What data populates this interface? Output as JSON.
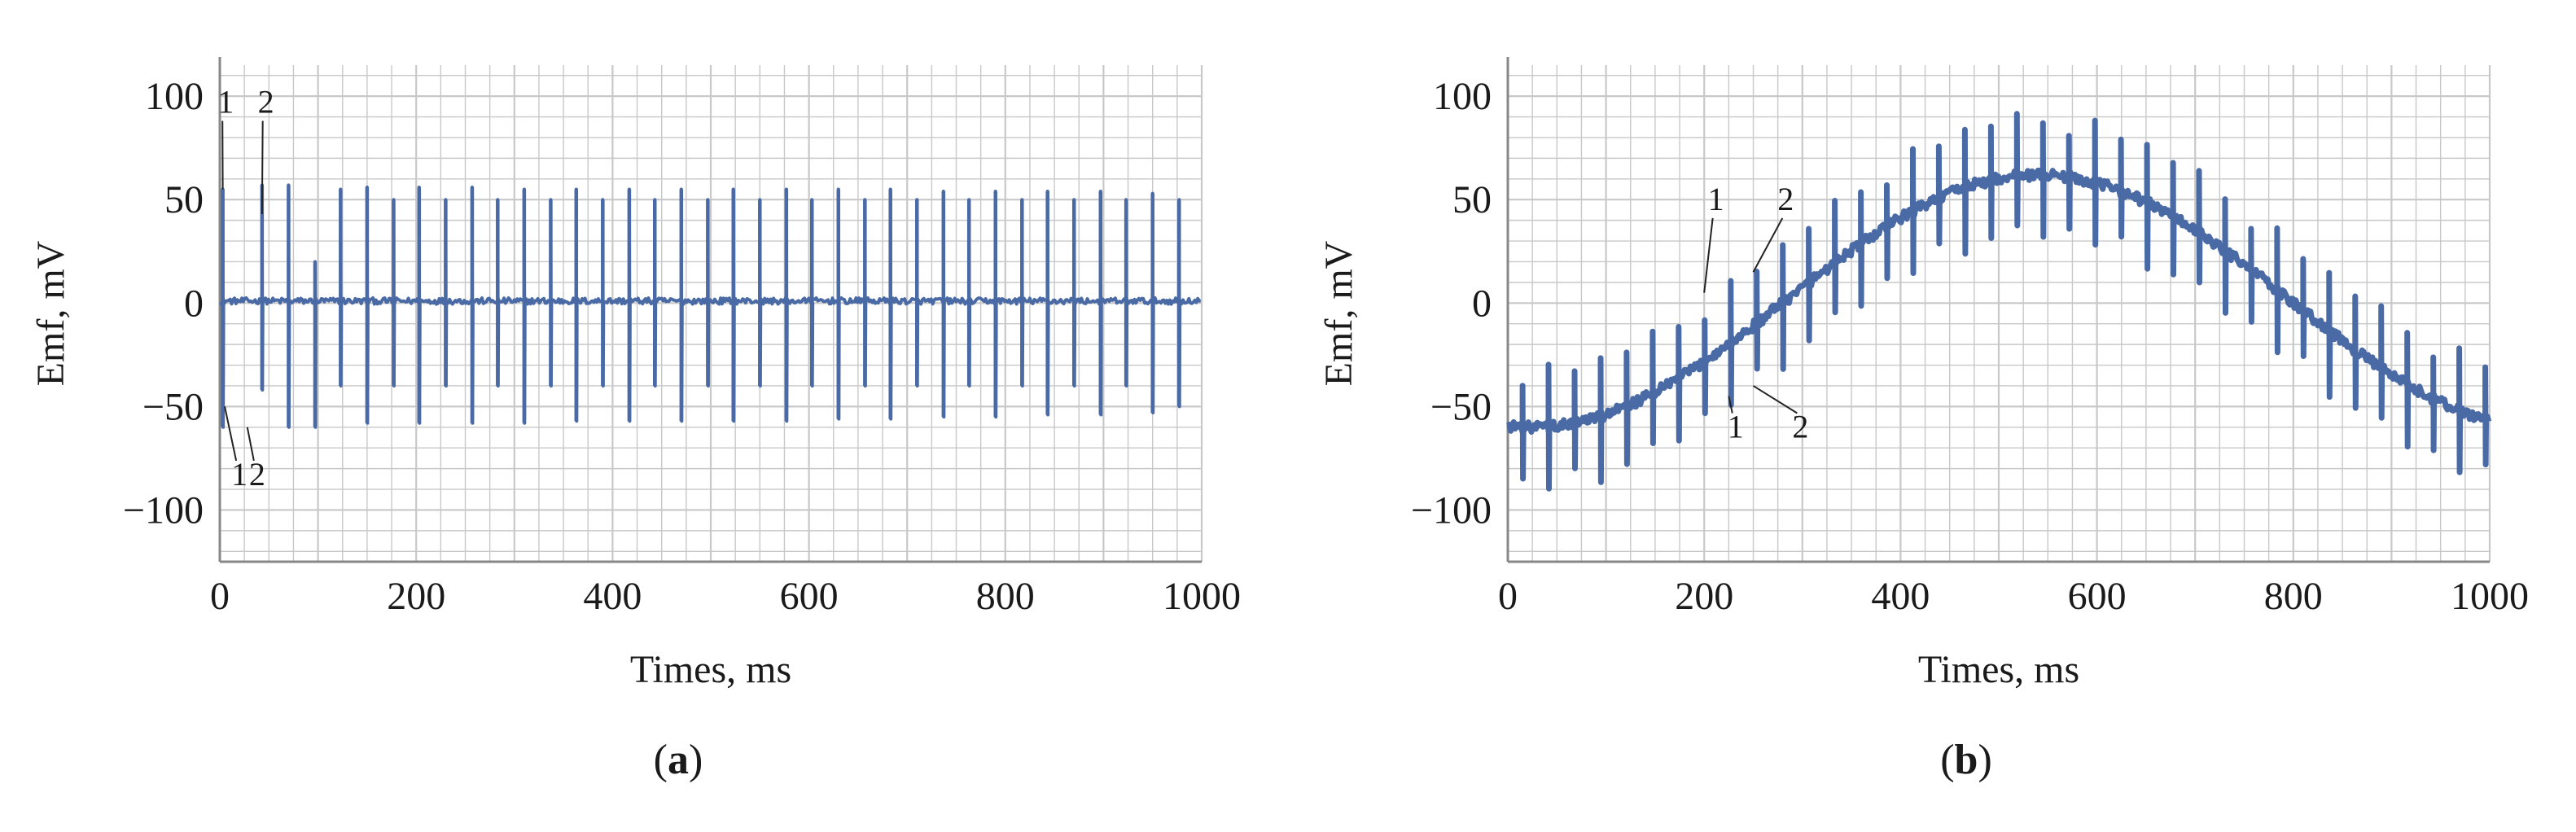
{
  "chart_data": [
    {
      "panel_label": "a",
      "caption_open": "(",
      "caption_close": ")",
      "type": "line",
      "xlabel": "Times, ms",
      "ylabel": "Emf, mV",
      "xlim": [
        0,
        1000
      ],
      "ylim": [
        -125,
        115
      ],
      "xticks": [
        0,
        200,
        400,
        600,
        800,
        1000
      ],
      "yticks": [
        100,
        50,
        0,
        -50,
        -100
      ],
      "ytick_labels": [
        "100",
        "50",
        "0",
        "−50",
        "−100"
      ],
      "grid": true,
      "baseline": {
        "kind": "flat",
        "level": 1,
        "noise": 1.5
      },
      "spikes": [
        {
          "x": 3,
          "top": 55,
          "bottom": -60
        },
        {
          "x": 43,
          "top": 57,
          "bottom": -42
        },
        {
          "x": 70,
          "top": 57,
          "bottom": -60
        },
        {
          "x": 97,
          "top": 20,
          "bottom": -60
        },
        {
          "x": 123,
          "top": 55,
          "bottom": -40
        },
        {
          "x": 150,
          "top": 56,
          "bottom": -58
        },
        {
          "x": 177,
          "top": 50,
          "bottom": -40
        },
        {
          "x": 203,
          "top": 56,
          "bottom": -58
        },
        {
          "x": 230,
          "top": 50,
          "bottom": -40
        },
        {
          "x": 257,
          "top": 56,
          "bottom": -58
        },
        {
          "x": 283,
          "top": 50,
          "bottom": -40
        },
        {
          "x": 310,
          "top": 55,
          "bottom": -58
        },
        {
          "x": 337,
          "top": 50,
          "bottom": -40
        },
        {
          "x": 363,
          "top": 55,
          "bottom": -57
        },
        {
          "x": 390,
          "top": 50,
          "bottom": -40
        },
        {
          "x": 417,
          "top": 55,
          "bottom": -57
        },
        {
          "x": 443,
          "top": 50,
          "bottom": -40
        },
        {
          "x": 470,
          "top": 55,
          "bottom": -57
        },
        {
          "x": 497,
          "top": 50,
          "bottom": -40
        },
        {
          "x": 523,
          "top": 55,
          "bottom": -57
        },
        {
          "x": 550,
          "top": 50,
          "bottom": -40
        },
        {
          "x": 577,
          "top": 55,
          "bottom": -57
        },
        {
          "x": 603,
          "top": 50,
          "bottom": -40
        },
        {
          "x": 630,
          "top": 55,
          "bottom": -56
        },
        {
          "x": 657,
          "top": 50,
          "bottom": -40
        },
        {
          "x": 683,
          "top": 55,
          "bottom": -56
        },
        {
          "x": 710,
          "top": 50,
          "bottom": -40
        },
        {
          "x": 737,
          "top": 54,
          "bottom": -55
        },
        {
          "x": 763,
          "top": 50,
          "bottom": -40
        },
        {
          "x": 790,
          "top": 54,
          "bottom": -55
        },
        {
          "x": 817,
          "top": 50,
          "bottom": -40
        },
        {
          "x": 843,
          "top": 54,
          "bottom": -54
        },
        {
          "x": 870,
          "top": 50,
          "bottom": -40
        },
        {
          "x": 897,
          "top": 54,
          "bottom": -54
        },
        {
          "x": 923,
          "top": 50,
          "bottom": -40
        },
        {
          "x": 950,
          "top": 53,
          "bottom": -53
        },
        {
          "x": 977,
          "top": 50,
          "bottom": -50
        }
      ],
      "annotations": [
        {
          "text": "1",
          "x": 6,
          "y": 92,
          "tx": 3,
          "ty": 55
        },
        {
          "text": "2",
          "x": 47,
          "y": 92,
          "tx": 43,
          "ty": 43
        },
        {
          "text": "1",
          "x": 20,
          "y": -88,
          "tx": 5,
          "ty": -50
        },
        {
          "text": "2",
          "x": 38,
          "y": -88,
          "tx": 28,
          "ty": -60
        }
      ]
    },
    {
      "panel_label": "b",
      "caption_open": "(",
      "caption_close": ")",
      "type": "line",
      "xlabel": "Times, ms",
      "ylabel": "Emf, mV",
      "xlim": [
        0,
        1000
      ],
      "ylim": [
        -125,
        115
      ],
      "xticks": [
        0,
        200,
        400,
        600,
        800,
        1000
      ],
      "yticks": [
        100,
        50,
        0,
        -50,
        -100
      ],
      "ytick_labels": [
        "100",
        "50",
        "0",
        "−50",
        "−100"
      ],
      "grid": true,
      "baseline": {
        "kind": "sine",
        "offset": 1,
        "amplitude": 61,
        "period": 1030,
        "phase_center": 540,
        "noise": 2.5
      },
      "spike_start": 15,
      "spike_spacing": 26.5,
      "spike_up": [
        20,
        30,
        25,
        28,
        26,
        30,
        25
      ],
      "spike_down": [
        -25,
        -30,
        -22,
        -32,
        -28,
        -24,
        -30
      ],
      "annotations": [
        {
          "text": "1",
          "x": 212,
          "y": 45,
          "tx": 200,
          "ty": 5
        },
        {
          "text": "2",
          "x": 283,
          "y": 45,
          "tx": 250,
          "ty": 15
        },
        {
          "text": "1",
          "x": 232,
          "y": -65,
          "tx": 225,
          "ty": -45
        },
        {
          "text": "2",
          "x": 298,
          "y": -65,
          "tx": 250,
          "ty": -40
        }
      ]
    }
  ],
  "colors": {
    "line": "#4a6aa5",
    "grid": "#c8c8c8",
    "axis": "#888888",
    "text": "#1a1a1a"
  }
}
